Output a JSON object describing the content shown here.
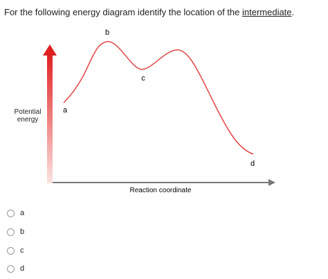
{
  "question": {
    "prefix": "For the following energy diagram identify the location of the ",
    "emphasis": "intermediate",
    "suffix": "."
  },
  "diagram": {
    "y_axis_label": "Potential energy",
    "x_axis_label": "Reaction coordinate",
    "points": [
      "a",
      "b",
      "c",
      "d"
    ]
  },
  "options": [
    "a",
    "b",
    "c",
    "d"
  ]
}
